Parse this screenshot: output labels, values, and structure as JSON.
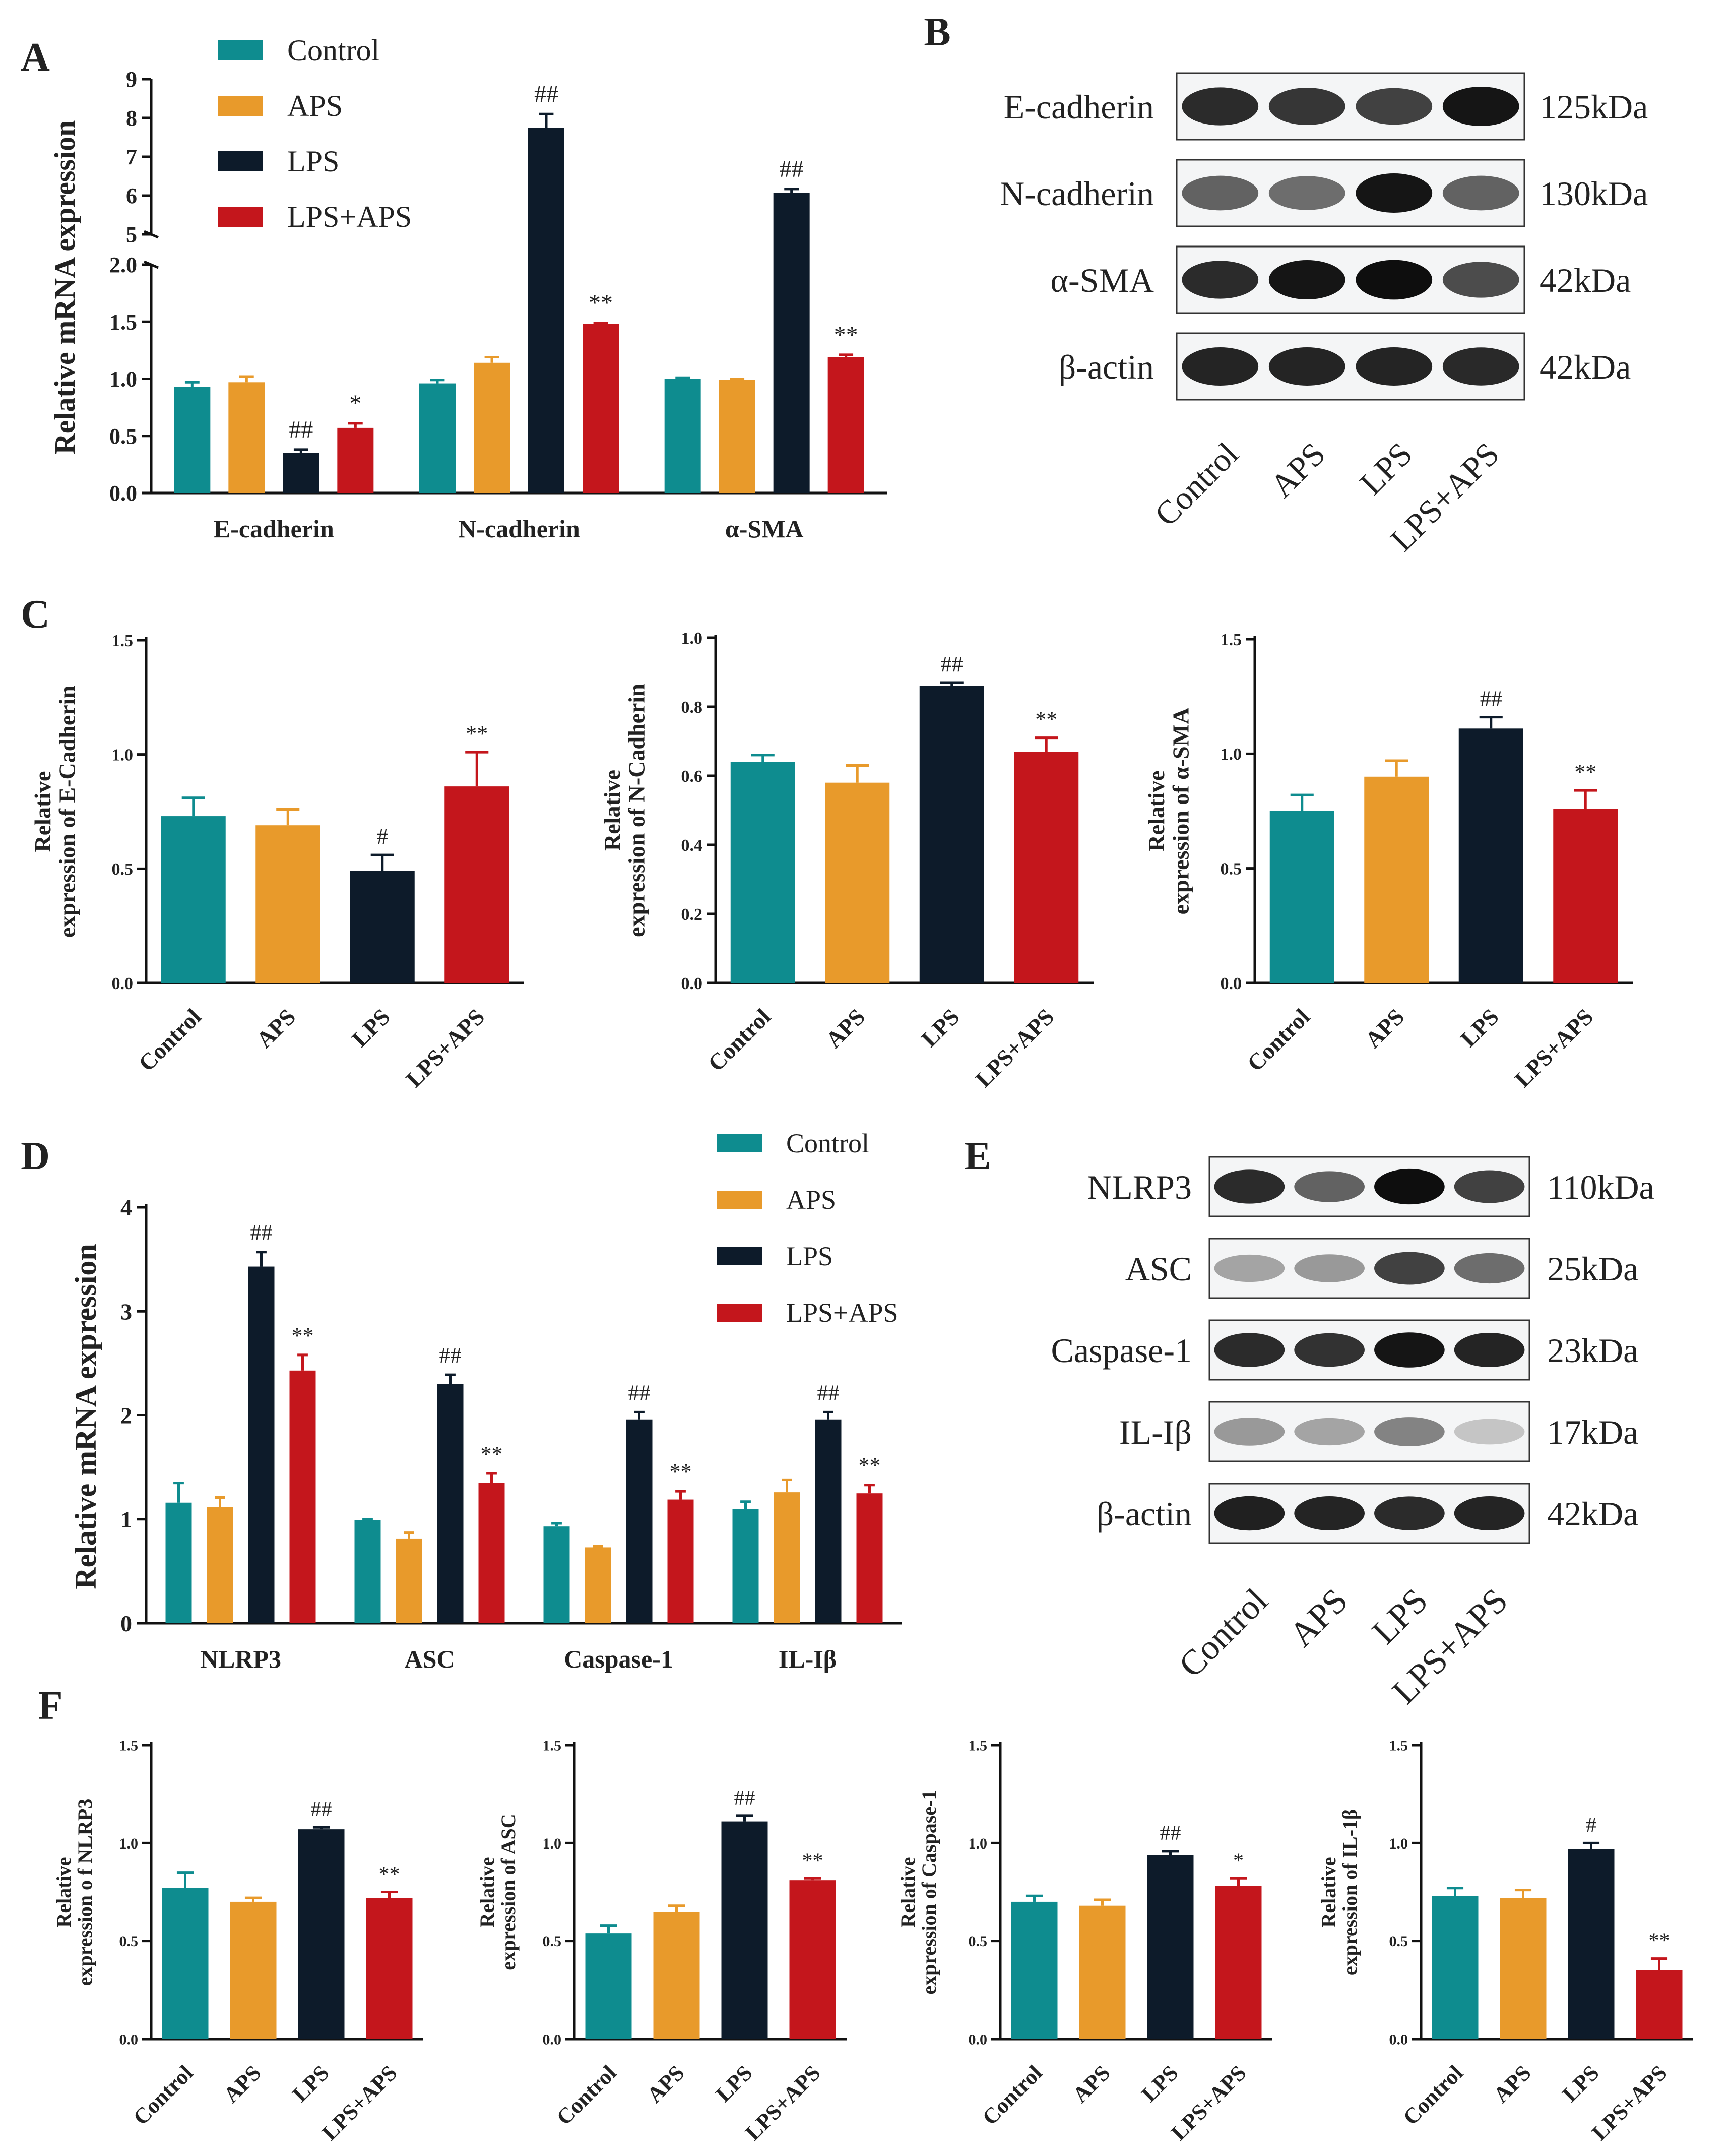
{
  "colors": {
    "Control": "#0e8c8f",
    "APS": "#e89a2b",
    "LPS": "#0d1b2a",
    "LPS+APS": "#c4161c"
  },
  "legend": [
    "Control",
    "APS",
    "LPS",
    "LPS+APS"
  ],
  "chart_data": [
    {
      "id": "A",
      "panel_label": "A",
      "type": "bar",
      "ylabel": "Relative mRNA expression",
      "categories": [
        "E-cadherin",
        "N-cadherin",
        "α-SMA"
      ],
      "axis_break": true,
      "lower_range": [
        0,
        2.0
      ],
      "upper_range": [
        5,
        9
      ],
      "lower_ticks": [
        "0.0",
        "0.5",
        "1.0",
        "1.5",
        "2.0"
      ],
      "upper_ticks": [
        "5",
        "6",
        "7",
        "8",
        "9"
      ],
      "series": [
        {
          "name": "Control",
          "values": [
            0.93,
            0.96,
            1.0
          ],
          "errors": [
            0.04,
            0.03,
            0.01
          ],
          "marks": [
            "",
            "",
            ""
          ]
        },
        {
          "name": "APS",
          "values": [
            0.97,
            1.14,
            0.99
          ],
          "errors": [
            0.05,
            0.05,
            0.01
          ],
          "marks": [
            "",
            "",
            ""
          ]
        },
        {
          "name": "LPS",
          "values": [
            0.35,
            7.75,
            6.07
          ],
          "errors": [
            0.03,
            0.35,
            0.1
          ],
          "marks": [
            "##",
            "##",
            "##"
          ]
        },
        {
          "name": "LPS+APS",
          "values": [
            0.57,
            1.48,
            1.19
          ],
          "errors": [
            0.04,
            0.01,
            0.02
          ],
          "marks": [
            "*",
            "**",
            "**"
          ]
        }
      ]
    },
    {
      "id": "C1",
      "panel_label": "C",
      "type": "bar",
      "ylabel_lines": [
        "Relative",
        "expression of E-Cadherin"
      ],
      "categories": [
        "Control",
        "APS",
        "LPS",
        "LPS+APS"
      ],
      "ylim": [
        0,
        1.5
      ],
      "ticks": [
        "0.0",
        "0.5",
        "1.0",
        "1.5"
      ],
      "values": [
        0.73,
        0.69,
        0.49,
        0.86
      ],
      "errors": [
        0.08,
        0.07,
        0.07,
        0.15
      ],
      "marks": [
        "",
        "",
        "#",
        "**"
      ]
    },
    {
      "id": "C2",
      "type": "bar",
      "ylabel_lines": [
        "Relative",
        "expression of N-Cadherin"
      ],
      "categories": [
        "Control",
        "APS",
        "LPS",
        "LPS+APS"
      ],
      "ylim": [
        0,
        1.0
      ],
      "ticks": [
        "0.0",
        "0.2",
        "0.4",
        "0.6",
        "0.8",
        "1.0"
      ],
      "values": [
        0.64,
        0.58,
        0.86,
        0.67
      ],
      "errors": [
        0.02,
        0.05,
        0.01,
        0.04
      ],
      "marks": [
        "",
        "",
        "##",
        "**"
      ]
    },
    {
      "id": "C3",
      "type": "bar",
      "ylabel_lines": [
        "Relative",
        "expression of α-SMA"
      ],
      "categories": [
        "Control",
        "APS",
        "LPS",
        "LPS+APS"
      ],
      "ylim": [
        0,
        1.5
      ],
      "ticks": [
        "0.0",
        "0.5",
        "1.0",
        "1.5"
      ],
      "values": [
        0.75,
        0.9,
        1.11,
        0.76
      ],
      "errors": [
        0.07,
        0.07,
        0.05,
        0.08
      ],
      "marks": [
        "",
        "",
        "##",
        "**"
      ]
    },
    {
      "id": "D",
      "panel_label": "D",
      "type": "bar",
      "ylabel": "Relative mRNA expression",
      "categories": [
        "NLRP3",
        "ASC",
        "Caspase-1",
        "IL-Iβ"
      ],
      "ylim": [
        0,
        4
      ],
      "ticks": [
        "0",
        "1",
        "2",
        "3",
        "4"
      ],
      "series": [
        {
          "name": "Control",
          "values": [
            1.16,
            0.99,
            0.93,
            1.1
          ],
          "errors": [
            0.19,
            0.01,
            0.03,
            0.07
          ],
          "marks": [
            "",
            "",
            "",
            ""
          ]
        },
        {
          "name": "APS",
          "values": [
            1.12,
            0.81,
            0.73,
            1.26
          ],
          "errors": [
            0.09,
            0.06,
            0.01,
            0.12
          ],
          "marks": [
            "",
            "",
            "",
            ""
          ]
        },
        {
          "name": "LPS",
          "values": [
            3.43,
            2.3,
            1.96,
            1.96
          ],
          "errors": [
            0.14,
            0.09,
            0.07,
            0.07
          ],
          "marks": [
            "##",
            "##",
            "##",
            "##"
          ]
        },
        {
          "name": "LPS+APS",
          "values": [
            2.43,
            1.35,
            1.19,
            1.25
          ],
          "errors": [
            0.15,
            0.09,
            0.08,
            0.08
          ],
          "marks": [
            "**",
            "**",
            "**",
            "**"
          ]
        }
      ]
    },
    {
      "id": "F1",
      "panel_label": "F",
      "type": "bar",
      "ylabel_lines": [
        "Relative",
        "expression o f NLRP3"
      ],
      "categories": [
        "Control",
        "APS",
        "LPS",
        "LPS+APS"
      ],
      "ylim": [
        0,
        1.5
      ],
      "ticks": [
        "0.0",
        "0.5",
        "1.0",
        "1.5"
      ],
      "values": [
        0.77,
        0.7,
        1.07,
        0.72
      ],
      "errors": [
        0.08,
        0.02,
        0.01,
        0.03
      ],
      "marks": [
        "",
        "",
        "##",
        "**"
      ]
    },
    {
      "id": "F2",
      "type": "bar",
      "ylabel_lines": [
        "Relative",
        "expression of ASC"
      ],
      "categories": [
        "Control",
        "APS",
        "LPS",
        "LPS+APS"
      ],
      "ylim": [
        0,
        1.5
      ],
      "ticks": [
        "0.0",
        "0.5",
        "1.0",
        "1.5"
      ],
      "values": [
        0.54,
        0.65,
        1.11,
        0.81
      ],
      "errors": [
        0.04,
        0.03,
        0.03,
        0.01
      ],
      "marks": [
        "",
        "",
        "##",
        "**"
      ]
    },
    {
      "id": "F3",
      "type": "bar",
      "ylabel_lines": [
        "Relative",
        "expression of Caspase-1"
      ],
      "categories": [
        "Control",
        "APS",
        "LPS",
        "LPS+APS"
      ],
      "ylim": [
        0,
        1.5
      ],
      "ticks": [
        "0.0",
        "0.5",
        "1.0",
        "1.5"
      ],
      "values": [
        0.7,
        0.68,
        0.94,
        0.78
      ],
      "errors": [
        0.03,
        0.03,
        0.02,
        0.04
      ],
      "marks": [
        "",
        "",
        "##",
        "*"
      ]
    },
    {
      "id": "F4",
      "type": "bar",
      "ylabel_lines": [
        "Relative",
        "expression of IL-1β"
      ],
      "categories": [
        "Control",
        "APS",
        "LPS",
        "LPS+APS"
      ],
      "ylim": [
        0,
        1.5
      ],
      "ticks": [
        "0.0",
        "0.5",
        "1.0",
        "1.5"
      ],
      "values": [
        0.73,
        0.72,
        0.97,
        0.35
      ],
      "errors": [
        0.04,
        0.04,
        0.03,
        0.06
      ],
      "marks": [
        "",
        "",
        "#",
        "**"
      ]
    }
  ],
  "western_blots": [
    {
      "panel_label": "B",
      "lanes": [
        "Control",
        "APS",
        "LPS",
        "LPS+APS"
      ],
      "rows": [
        {
          "protein": "E-cadherin",
          "size": "125kDa",
          "intensity": [
            0.85,
            0.8,
            0.75,
            0.95
          ]
        },
        {
          "protein": "N-cadherin",
          "size": "130kDa",
          "intensity": [
            0.6,
            0.55,
            0.95,
            0.6
          ]
        },
        {
          "protein": "α-SMA",
          "size": "42kDa",
          "intensity": [
            0.85,
            0.95,
            0.98,
            0.7
          ]
        },
        {
          "protein": "β-actin",
          "size": "42kDa",
          "intensity": [
            0.88,
            0.88,
            0.88,
            0.86
          ]
        }
      ]
    },
    {
      "panel_label": "E",
      "lanes": [
        "Control",
        "APS",
        "LPS",
        "LPS+APS"
      ],
      "rows": [
        {
          "protein": "NLRP3",
          "size": "110kDa",
          "intensity": [
            0.85,
            0.6,
            0.98,
            0.75
          ]
        },
        {
          "protein": "ASC",
          "size": "25kDa",
          "intensity": [
            0.3,
            0.35,
            0.75,
            0.55
          ]
        },
        {
          "protein": "Caspase-1",
          "size": "23kDa",
          "intensity": [
            0.85,
            0.82,
            0.95,
            0.88
          ]
        },
        {
          "protein": "IL-Iβ",
          "size": "17kDa",
          "intensity": [
            0.35,
            0.3,
            0.45,
            0.15
          ]
        },
        {
          "protein": "β-actin",
          "size": "42kDa",
          "intensity": [
            0.9,
            0.88,
            0.85,
            0.88
          ]
        }
      ]
    }
  ]
}
